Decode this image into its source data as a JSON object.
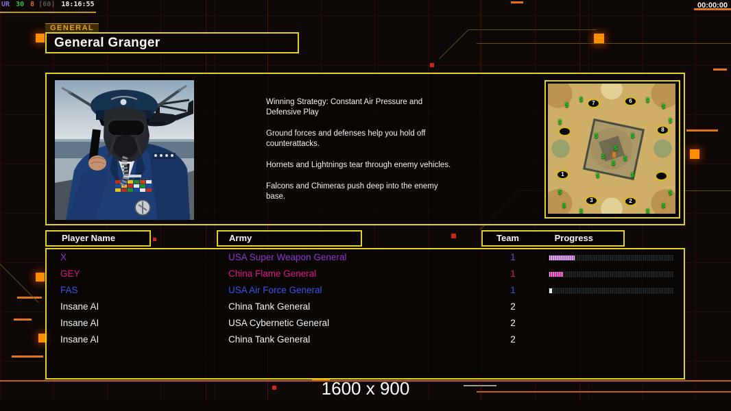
{
  "overlay": {
    "perf": {
      "label": "UR",
      "fps": "30",
      "frame": "8",
      "bracket": "[60]",
      "time": "18:16:55"
    },
    "match_timer": "00:00:00"
  },
  "general_panel": {
    "tab_label": "GENERAL",
    "title": "General Granger",
    "strategy_paragraphs": [
      "Winning Strategy: Constant Air Pressure and\n Defensive Play",
      "Ground forces and defenses help you hold off\n counterattacks.",
      "Hornets and Lightnings tear through enemy vehicles.",
      "Falcons and Chimeras push deep into the enemy\n base."
    ]
  },
  "minimap": {
    "supply_symbol": "$",
    "spawns": [
      {
        "label": "7"
      },
      {
        "label": "6"
      },
      {
        "label": "8"
      },
      {
        "label": ""
      },
      {
        "label": "1"
      },
      {
        "label": ""
      },
      {
        "label": "3"
      },
      {
        "label": "2"
      }
    ]
  },
  "players": {
    "columns": {
      "name": "Player Name",
      "army": "Army",
      "team": "Team",
      "progress": "Progress"
    },
    "rows": [
      {
        "name": "X",
        "army": "USA Super Weapon General",
        "team": "1",
        "progress": 20,
        "color": "#8f33d6",
        "progress_color": "#b35fe0"
      },
      {
        "name": "GEY",
        "army": "China Flame General",
        "team": "1",
        "progress": 11,
        "color": "#e0148c",
        "progress_color": "#e81a9a"
      },
      {
        "name": "FAS",
        "army": "USA Air Force General",
        "team": "1",
        "progress": 2,
        "color": "#3a52f0",
        "progress_color": "#dfe6ff"
      },
      {
        "name": "Insane AI",
        "army": "China Tank General",
        "team": "2",
        "progress": null,
        "color": "#f2f2f2",
        "progress_color": null
      },
      {
        "name": "Insane AI",
        "army": "USA Cybernetic General",
        "team": "2",
        "progress": null,
        "color": "#f2f2f2",
        "progress_color": null
      },
      {
        "name": "Insane AI",
        "army": "China Tank General",
        "team": "2",
        "progress": null,
        "color": "#f2f2f2",
        "progress_color": null
      }
    ]
  },
  "footer": {
    "resolution": "1600 x 900"
  },
  "colors": {
    "accent_yellow": "#e5d122",
    "accent_orange": "#ff8d00",
    "supply_green": "#21d321"
  }
}
